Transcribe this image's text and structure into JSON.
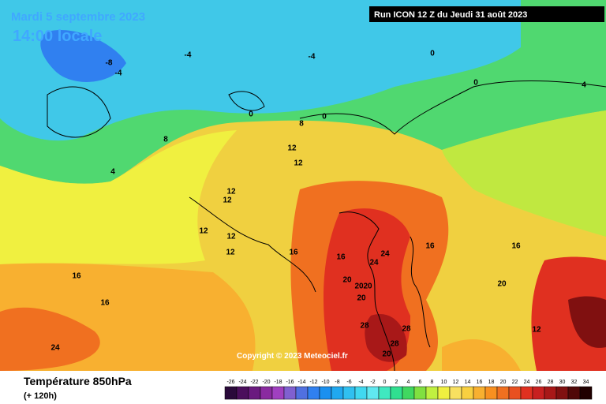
{
  "header": {
    "date": "Mardi 5 septembre 2023",
    "time": "14:00 locale",
    "run": "Run ICON 12 Z du Jeudi 31 août 2023"
  },
  "copyright": "Copyright © 2023 Meteociel.fr",
  "footer": {
    "title": "Température 850hPa",
    "lead": "(+ 120h)"
  },
  "legend": {
    "values": [
      -26,
      -24,
      -22,
      -20,
      -18,
      -16,
      -14,
      -12,
      -10,
      -8,
      -6,
      -4,
      -2,
      0,
      2,
      4,
      6,
      8,
      10,
      12,
      14,
      16,
      18,
      20,
      22,
      24,
      26,
      28,
      30,
      32,
      34
    ],
    "colors": [
      "#2a0a3a",
      "#4b0f5c",
      "#6a1a7f",
      "#8a2aa0",
      "#a040c0",
      "#8060d0",
      "#5070e0",
      "#3080f0",
      "#1a90f0",
      "#20a8f0",
      "#30c0f0",
      "#40d8f0",
      "#60e8f0",
      "#40e8c0",
      "#30e090",
      "#40d860",
      "#80e040",
      "#c0f040",
      "#f0f040",
      "#f8e060",
      "#f8d040",
      "#f8b030",
      "#f89020",
      "#f07020",
      "#e85020",
      "#e03020",
      "#c82020",
      "#a81818",
      "#801010",
      "#500808",
      "#200000"
    ]
  },
  "contour_labels": [
    -8,
    -4,
    -4,
    -4,
    0,
    0,
    0,
    0,
    4,
    4,
    8,
    8,
    12,
    12,
    12,
    12,
    12,
    12,
    12,
    16,
    16,
    16,
    16,
    20,
    20,
    20,
    20,
    24,
    24,
    24,
    28,
    28,
    28,
    20,
    16,
    12,
    16,
    20
  ]
}
